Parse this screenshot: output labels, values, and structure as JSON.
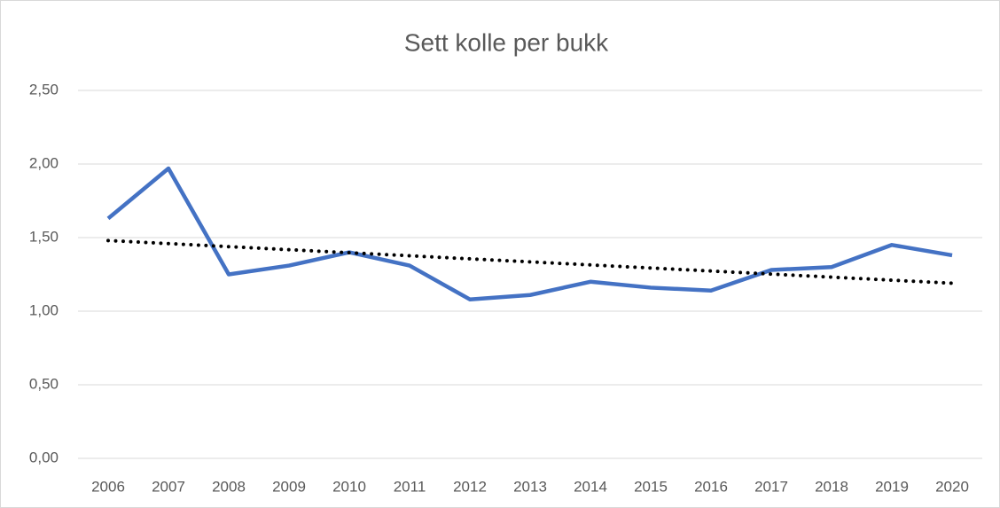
{
  "chart_data": {
    "type": "line",
    "title": "Sett kolle per bukk",
    "categories": [
      "2006",
      "2007",
      "2008",
      "2009",
      "2010",
      "2011",
      "2012",
      "2013",
      "2014",
      "2015",
      "2016",
      "2017",
      "2018",
      "2019",
      "2020"
    ],
    "series": [
      {
        "color": "#4472c4",
        "values": [
          1.63,
          1.97,
          1.25,
          1.31,
          1.4,
          1.31,
          1.08,
          1.11,
          1.2,
          1.16,
          1.14,
          1.28,
          1.3,
          1.45,
          1.38
        ]
      }
    ],
    "trendline": {
      "color": "#000000",
      "start": 1.48,
      "end": 1.19
    },
    "ylim": [
      0,
      2.5
    ],
    "yticks": [
      {
        "value": 0,
        "label": "0,00"
      },
      {
        "value": 0.5,
        "label": "0,50"
      },
      {
        "value": 1,
        "label": "1,00"
      },
      {
        "value": 1.5,
        "label": "1,50"
      },
      {
        "value": 2,
        "label": "2,00"
      },
      {
        "value": 2.5,
        "label": "2,50"
      }
    ],
    "grid": true
  }
}
